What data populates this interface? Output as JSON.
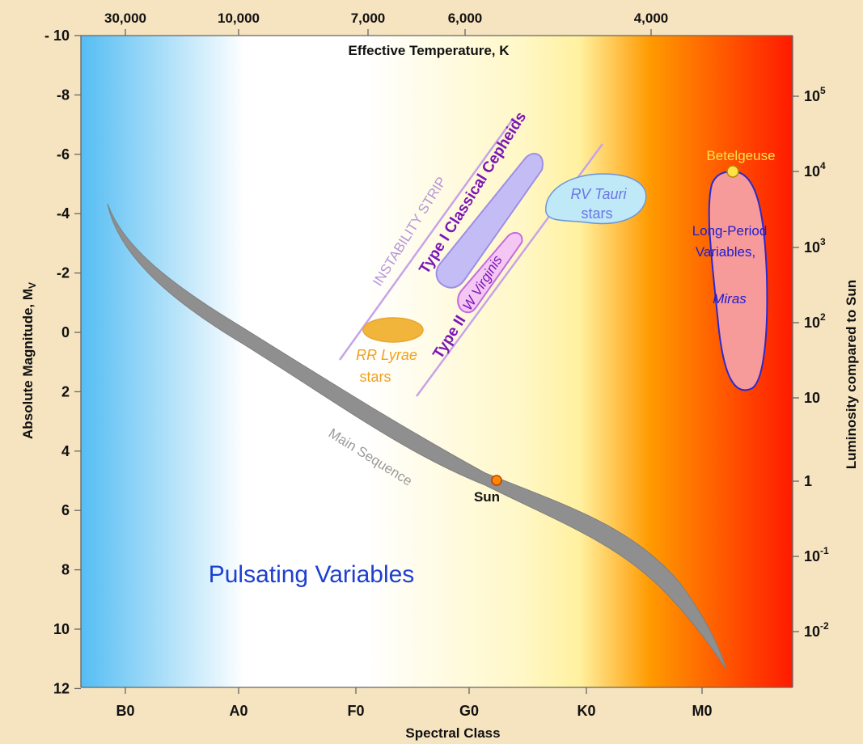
{
  "chart_data": {
    "type": "diagram",
    "title": "Pulsating Variables",
    "x_axis": {
      "label": "Spectral Class",
      "ticks": [
        "B0",
        "A0",
        "F0",
        "G0",
        "K0",
        "M0"
      ]
    },
    "x2_axis": {
      "label": "Effective Temperature, K",
      "ticks": [
        "30,000",
        "10,000",
        "7,000",
        "6,000",
        "4,000"
      ]
    },
    "y_axis": {
      "label": "Absolute Magnitude, M",
      "label_subscript": "V",
      "range": [
        12,
        -10
      ],
      "ticks": [
        "- 10",
        "-8",
        "-6",
        "-4",
        "-2",
        "0",
        "2",
        "4",
        "6",
        "8",
        "10",
        "12"
      ]
    },
    "y2_axis": {
      "label": "Luminosity compared to Sun",
      "ticks": [
        {
          "base": "10",
          "exp": "5"
        },
        {
          "base": "10",
          "exp": "4"
        },
        {
          "base": "10",
          "exp": "3"
        },
        {
          "base": "10",
          "exp": "2"
        },
        {
          "base": "10",
          "exp": ""
        },
        {
          "base": "1",
          "exp": ""
        },
        {
          "base": "10",
          "exp": "-1"
        },
        {
          "base": "10",
          "exp": "-2"
        }
      ]
    },
    "main_sequence": {
      "label": "Main Sequence",
      "color": "#8f8f8f",
      "points": [
        {
          "class": "B0",
          "mag": -4.2
        },
        {
          "class": "A0",
          "mag": 0.6
        },
        {
          "class": "F0",
          "mag": 3.2
        },
        {
          "class": "G0",
          "mag": 4.6
        },
        {
          "class": "K0",
          "mag": 6.5
        },
        {
          "class": "M0",
          "mag": 9.8
        }
      ]
    },
    "regions": [
      {
        "name": "Type I Classical Cepheids",
        "color": "#c4bdf5",
        "text_color": "#7a16b6"
      },
      {
        "name": "Type II",
        "color": "#e8b6f2",
        "text_color": "#7a16b6"
      },
      {
        "name": "W Virginis",
        "color": "#f4c6f4",
        "text_color": "#7a16b6"
      },
      {
        "name": "RR Lyrae",
        "sub": "stars",
        "color": "#f2b53b",
        "text_color": "#f0a020"
      },
      {
        "name": "RV Tauri",
        "sub": "stars",
        "color": "#bfe9f7",
        "text_color": "#6b76e6"
      },
      {
        "name": "Long-Period",
        "sub": "Variables,",
        "sub2": "Miras",
        "color": "#f79a9a",
        "text_color": "#1d1dd0"
      }
    ],
    "instability_strip_label": "INSTABILITY STRIP",
    "stars": [
      {
        "name": "Sun",
        "class_position": "G2",
        "mag": 4.8,
        "color": "#ff8a00"
      },
      {
        "name": "Betelgeuse",
        "class_position": "M2",
        "mag": -5.5,
        "color": "#ffe14a"
      }
    ],
    "colors": {
      "blue": "#55bdf3",
      "white": "#ffffff",
      "yellow": "#fffaa8",
      "orange": "#ffb100",
      "red": "#ff1a00"
    }
  }
}
